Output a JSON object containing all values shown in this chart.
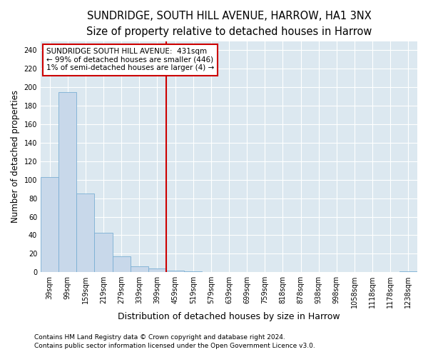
{
  "title1": "SUNDRIDGE, SOUTH HILL AVENUE, HARROW, HA1 3NX",
  "title2": "Size of property relative to detached houses in Harrow",
  "xlabel": "Distribution of detached houses by size in Harrow",
  "ylabel": "Number of detached properties",
  "footnote1": "Contains HM Land Registry data © Crown copyright and database right 2024.",
  "footnote2": "Contains public sector information licensed under the Open Government Licence v3.0.",
  "bar_labels": [
    "39sqm",
    "99sqm",
    "159sqm",
    "219sqm",
    "279sqm",
    "339sqm",
    "399sqm",
    "459sqm",
    "519sqm",
    "579sqm",
    "639sqm",
    "699sqm",
    "759sqm",
    "818sqm",
    "878sqm",
    "938sqm",
    "998sqm",
    "1058sqm",
    "1118sqm",
    "1178sqm",
    "1238sqm"
  ],
  "bar_values": [
    103,
    195,
    85,
    43,
    17,
    6,
    4,
    2,
    1,
    0,
    0,
    0,
    0,
    0,
    0,
    0,
    0,
    0,
    0,
    0,
    1
  ],
  "bar_color": "#c8d8ea",
  "bar_edge_color": "#7aafd4",
  "vline_x": 7.0,
  "vline_color": "#cc0000",
  "ylim": [
    0,
    250
  ],
  "yticks": [
    0,
    20,
    40,
    60,
    80,
    100,
    120,
    140,
    160,
    180,
    200,
    220,
    240
  ],
  "annotation_title": "SUNDRIDGE SOUTH HILL AVENUE:  431sqm",
  "annotation_line1": "← 99% of detached houses are smaller (446)",
  "annotation_line2": "1% of semi-detached houses are larger (4) →",
  "annotation_box_facecolor": "#ffffff",
  "annotation_box_edgecolor": "#cc0000",
  "fig_bg_color": "#ffffff",
  "plot_bg_color": "#dce8f0",
  "grid_color": "#ffffff",
  "title1_fontsize": 10.5,
  "title2_fontsize": 9.5,
  "tick_fontsize": 7,
  "ylabel_fontsize": 8.5,
  "xlabel_fontsize": 9,
  "annot_fontsize": 7.5,
  "footnote_fontsize": 6.5
}
